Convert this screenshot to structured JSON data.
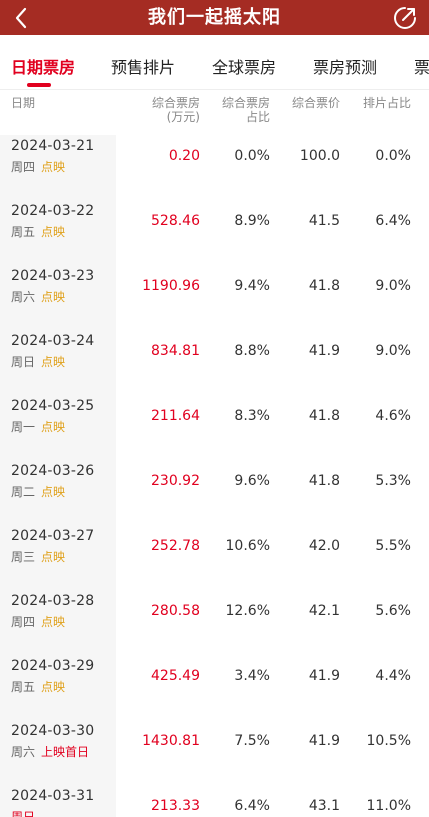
{
  "header": {
    "title": "我们一起摇太阳",
    "back_icon": "chevron-left-icon",
    "share_icon": "share-icon"
  },
  "tabs": [
    {
      "label": "日期票房",
      "active": true
    },
    {
      "label": "预售排片",
      "active": false
    },
    {
      "label": "全球票房",
      "active": false
    },
    {
      "label": "票房预测",
      "active": false
    },
    {
      "label": "票",
      "active": false
    }
  ],
  "columns": {
    "date": "日期",
    "box_office_1": "综合票房",
    "box_office_2": "(万元)",
    "share_1": "综合票房",
    "share_2": "占比",
    "price": "综合票价",
    "schedule": "排片占比"
  },
  "rows": [
    {
      "date": "2024-03-21",
      "weekday": "周四",
      "status": "点映",
      "box_office": "0.20",
      "share": "0.0%",
      "price": "100.0",
      "schedule": "0.0%"
    },
    {
      "date": "2024-03-22",
      "weekday": "周五",
      "status": "点映",
      "box_office": "528.46",
      "share": "8.9%",
      "price": "41.5",
      "schedule": "6.4%"
    },
    {
      "date": "2024-03-23",
      "weekday": "周六",
      "status": "点映",
      "box_office": "1190.96",
      "share": "9.4%",
      "price": "41.8",
      "schedule": "9.0%"
    },
    {
      "date": "2024-03-24",
      "weekday": "周日",
      "status": "点映",
      "box_office": "834.81",
      "share": "8.8%",
      "price": "41.9",
      "schedule": "9.0%"
    },
    {
      "date": "2024-03-25",
      "weekday": "周一",
      "status": "点映",
      "box_office": "211.64",
      "share": "8.3%",
      "price": "41.8",
      "schedule": "4.6%"
    },
    {
      "date": "2024-03-26",
      "weekday": "周二",
      "status": "点映",
      "box_office": "230.92",
      "share": "9.6%",
      "price": "41.8",
      "schedule": "5.3%"
    },
    {
      "date": "2024-03-27",
      "weekday": "周三",
      "status": "点映",
      "box_office": "252.78",
      "share": "10.6%",
      "price": "42.0",
      "schedule": "5.5%"
    },
    {
      "date": "2024-03-28",
      "weekday": "周四",
      "status": "点映",
      "box_office": "280.58",
      "share": "12.6%",
      "price": "42.1",
      "schedule": "5.6%"
    },
    {
      "date": "2024-03-29",
      "weekday": "周五",
      "status": "点映",
      "box_office": "425.49",
      "share": "3.4%",
      "price": "41.9",
      "schedule": "4.4%"
    },
    {
      "date": "2024-03-30",
      "weekday": "周六",
      "status": "上映首日",
      "box_office": "1430.81",
      "share": "7.5%",
      "price": "41.9",
      "schedule": "10.5%"
    },
    {
      "date": "2024-03-31",
      "weekday": "周日",
      "status": "",
      "box_office": "213.33",
      "share": "6.4%",
      "price": "43.1",
      "schedule": "11.0%"
    }
  ],
  "colors": {
    "header_bg": "#a52c23",
    "accent_red": "#e1001f",
    "preview_gold": "#e0a21d"
  }
}
